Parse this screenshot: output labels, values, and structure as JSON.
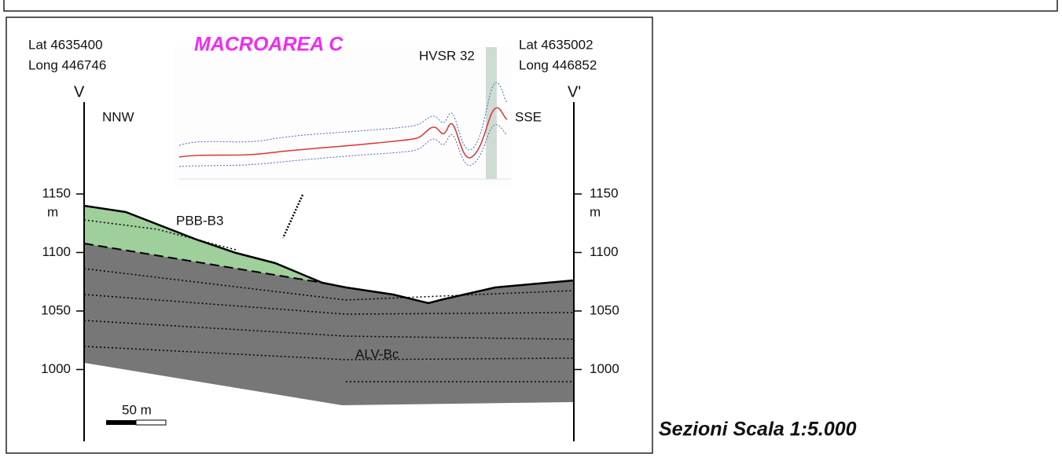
{
  "section": {
    "title": "MACROAREA C",
    "left": {
      "lat": "Lat  4635400",
      "long": "Long 446746",
      "label": "V",
      "direction": "NNW"
    },
    "right": {
      "lat": "Lat  4635002",
      "long": "Long 446852",
      "label": "V'",
      "direction": "SSE"
    },
    "hvsr": "HVSR 32",
    "units": [
      "PBB-B3",
      "ALV-Bc"
    ],
    "elevation": {
      "unit": "m",
      "ticks": [
        1150,
        1100,
        1050,
        1000
      ]
    },
    "scale_bar": "50 m"
  },
  "caption": "Sezioni Scala 1:5.000"
}
